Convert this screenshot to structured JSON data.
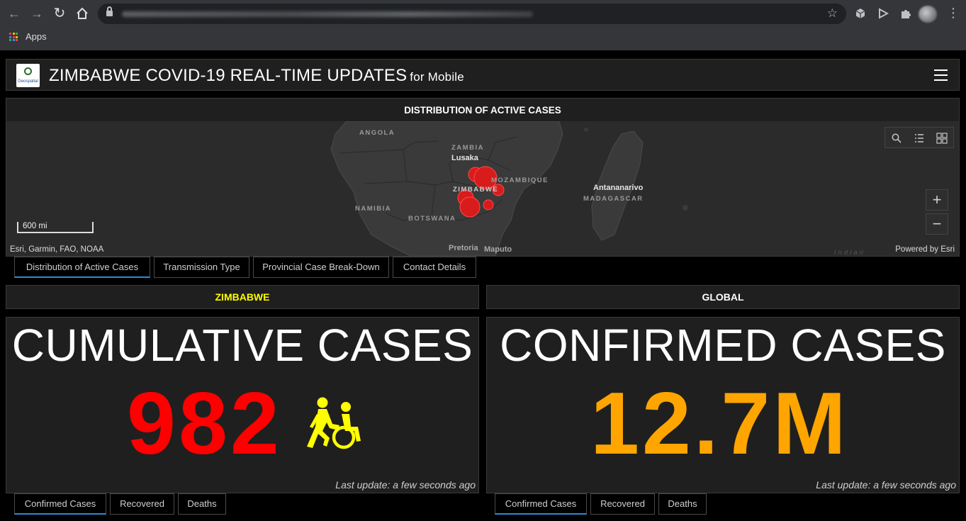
{
  "browser": {
    "bookmarks": {
      "apps_label": "Apps"
    },
    "icons": [
      "back-arrow-icon",
      "forward-arrow-icon",
      "reload-icon",
      "home-icon",
      "lock-icon",
      "star-icon",
      "extension-icon",
      "puzzle-icon",
      "avatar",
      "more-menu-icon"
    ]
  },
  "header": {
    "title": "ZIMBABWE COVID-19 REAL-TIME UPDATES",
    "subtitle": "for Mobile",
    "logo_text": "Geospatial"
  },
  "map": {
    "title": "DISTRIBUTION OF ACTIVE CASES",
    "scale_label": "600 mi",
    "attribution": "Esri, Garmin, FAO, NOAA",
    "powered_by": "Powered by Esri",
    "labels": {
      "angola": "ANGOLA",
      "zambia": "ZAMBIA",
      "lusaka": "Lusaka",
      "zimbabwe": "ZIMBABWE",
      "mozambique": "MOZAMBIQUE",
      "antananarivo": "Antananarivo",
      "madagascar": "MADAGASCAR",
      "namibia": "NAMIBIA",
      "botswana": "BOTSWANA",
      "pretoria": "Pretoria",
      "maputo": "Maputo",
      "indian": "Indian"
    },
    "marker_color": "#e01e1e"
  },
  "map_tabs": [
    {
      "label": "Distribution of Active Cases",
      "active": true
    },
    {
      "label": "Transmission Type",
      "active": false
    },
    {
      "label": "Provincial Case Break-Down",
      "active": false
    },
    {
      "label": "Contact Details",
      "active": false
    }
  ],
  "zimbabwe": {
    "heading": "ZIMBABWE",
    "heading_color": "#ffff00",
    "counter_title": "CUMULATIVE CASES",
    "value": "982",
    "value_color": "#ff0000",
    "icon": "wheelchair-assist-icon",
    "icon_color": "#ffff00",
    "last_update": "Last update: a few seconds ago",
    "tabs": [
      {
        "label": "Confirmed Cases",
        "active": true
      },
      {
        "label": "Recovered",
        "active": false
      },
      {
        "label": "Deaths",
        "active": false
      }
    ]
  },
  "global": {
    "heading": "GLOBAL",
    "counter_title": "CONFIRMED CASES",
    "value": "12.7M",
    "value_color": "#ffa500",
    "last_update": "Last update: a few seconds ago",
    "tabs": [
      {
        "label": "Confirmed Cases",
        "active": true
      },
      {
        "label": "Recovered",
        "active": false
      },
      {
        "label": "Deaths",
        "active": false
      }
    ]
  }
}
